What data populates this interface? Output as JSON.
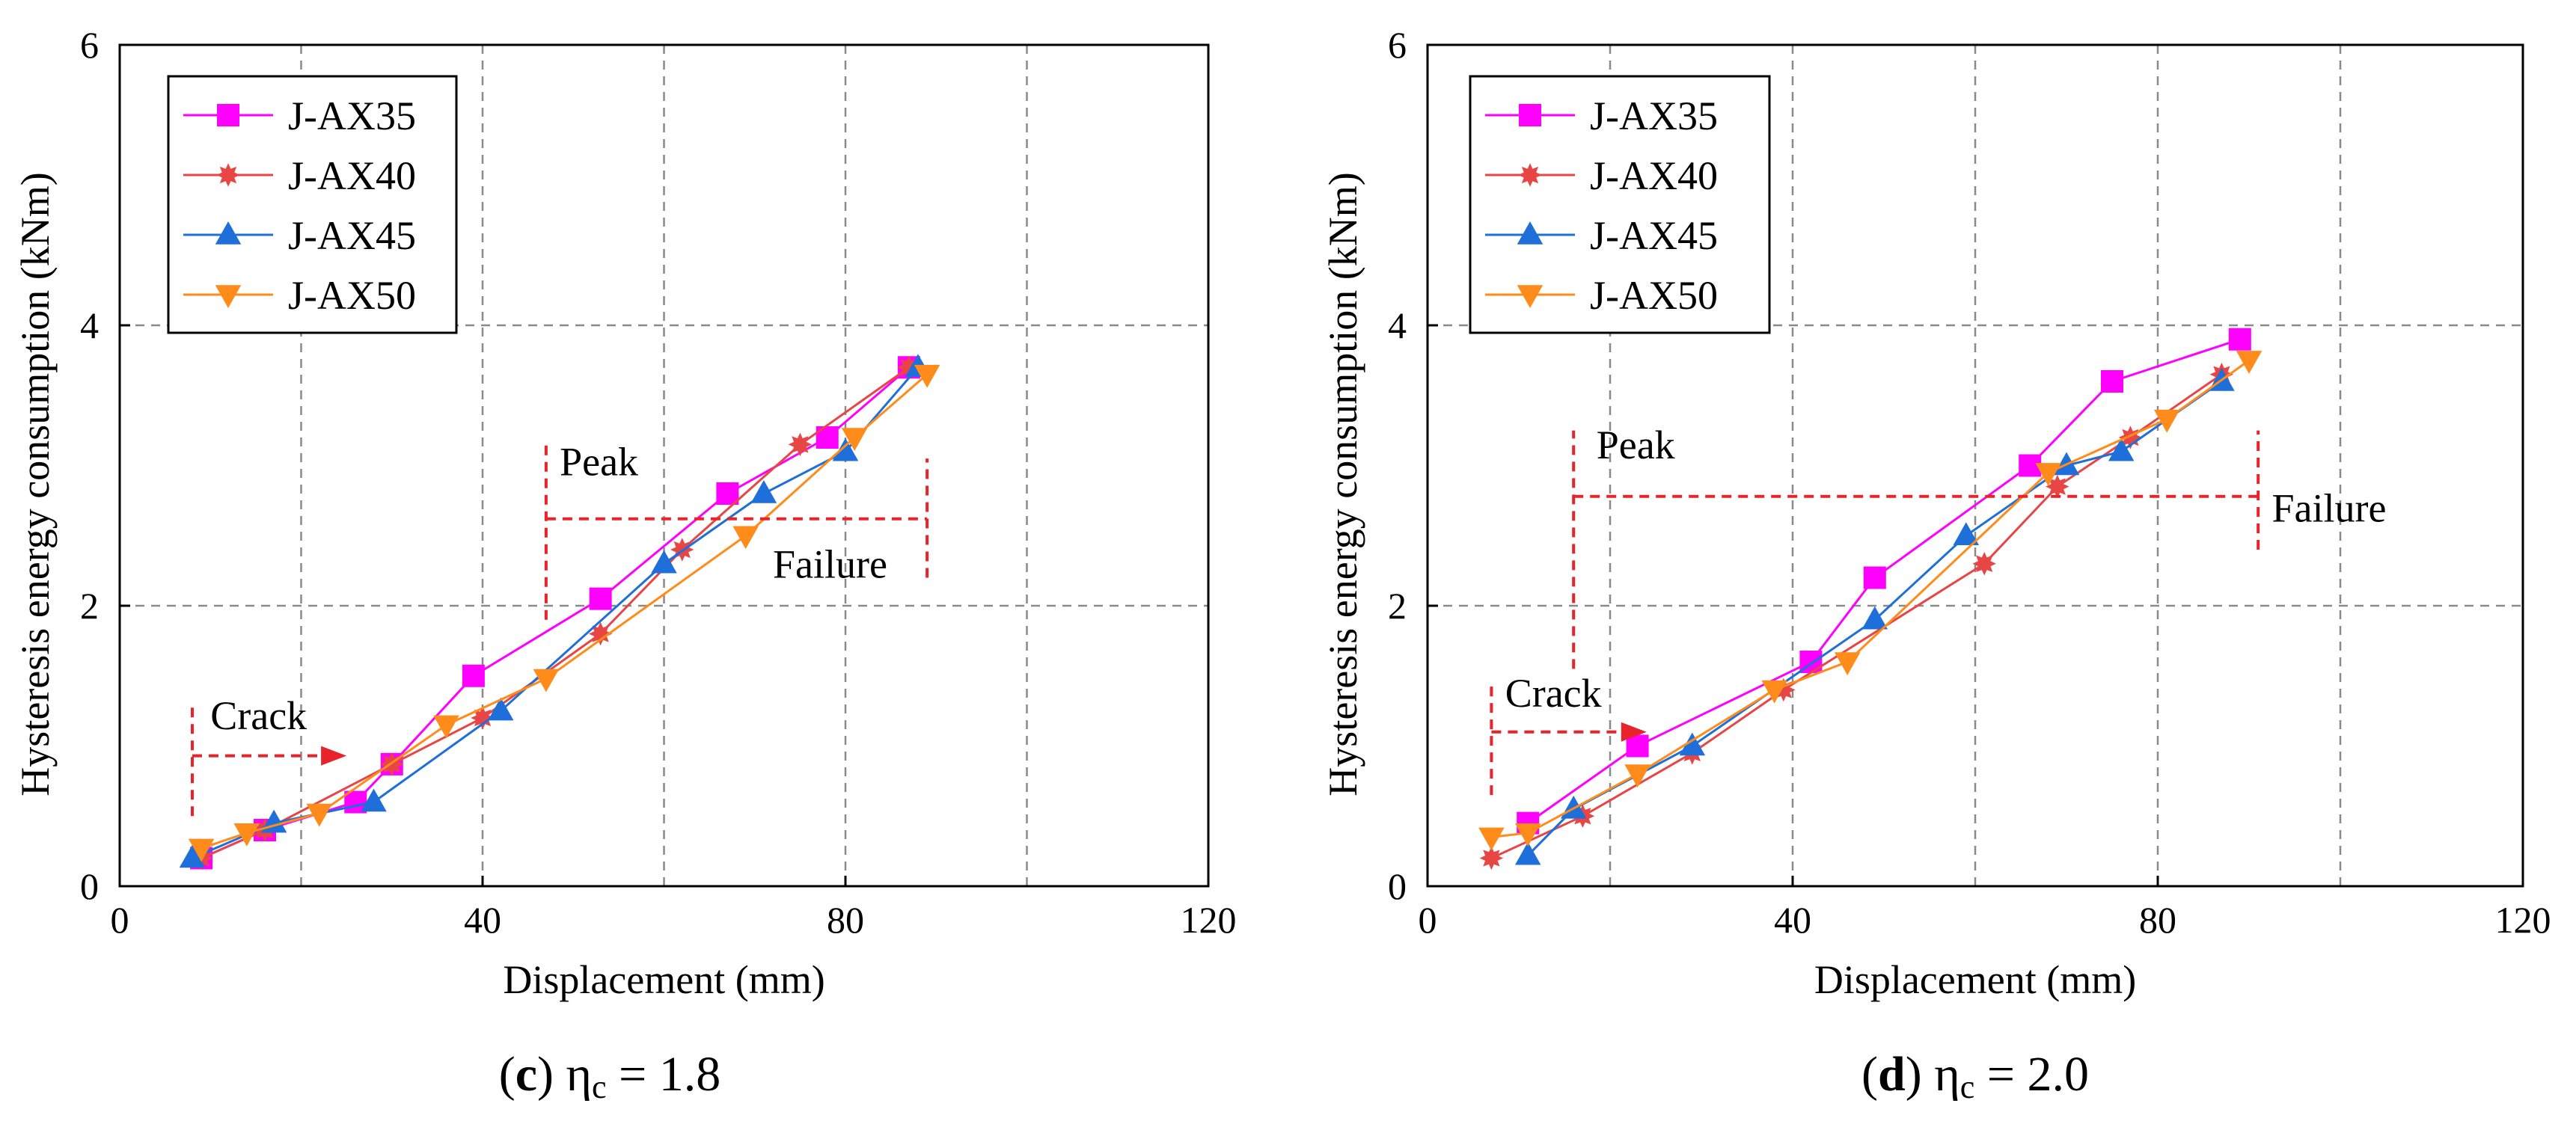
{
  "chart_data": [
    {
      "type": "line",
      "caption_letter": "(c)",
      "caption_rest": " η",
      "caption_sub": "c",
      "caption_value": " = 1.8",
      "xlabel": "Displacement (mm)",
      "ylabel": "Hysteresis energy consumption (kNm)",
      "xlim": [
        0,
        120
      ],
      "ylim": [
        0,
        6
      ],
      "xticks": [
        "0",
        "40",
        "80",
        "120"
      ],
      "yticks": [
        "0",
        "2",
        "4",
        "6"
      ],
      "grid": true,
      "legend_position": "top-left",
      "series": [
        {
          "name": "J-AX35",
          "color": "#ff00ff",
          "marker": "square",
          "x": [
            9,
            16,
            26,
            30,
            39,
            53,
            67,
            78,
            87
          ],
          "y": [
            0.2,
            0.4,
            0.6,
            0.87,
            1.5,
            2.05,
            2.8,
            3.2,
            3.7
          ]
        },
        {
          "name": "J-AX40",
          "color": "#e84545",
          "marker": "star",
          "x": [
            9,
            16,
            30,
            40,
            53,
            62,
            75,
            87
          ],
          "y": [
            0.2,
            0.4,
            0.87,
            1.2,
            1.8,
            2.4,
            3.15,
            3.7
          ]
        },
        {
          "name": "J-AX45",
          "color": "#1e6fd9",
          "marker": "triangle-up",
          "x": [
            8,
            17,
            28,
            42,
            60,
            71,
            80,
            88
          ],
          "y": [
            0.2,
            0.45,
            0.6,
            1.25,
            2.3,
            2.8,
            3.1,
            3.7
          ]
        },
        {
          "name": "J-AX50",
          "color": "#ff8c1a",
          "marker": "triangle-down",
          "x": [
            9,
            14,
            22,
            36,
            47,
            69,
            81,
            89
          ],
          "y": [
            0.27,
            0.38,
            0.52,
            1.15,
            1.48,
            2.5,
            3.2,
            3.65
          ]
        }
      ],
      "annotations": [
        {
          "text": "Crack",
          "x": 8,
          "y_range": [
            0.5,
            1.3
          ],
          "arrow_to_x": 25,
          "arrow_y": 0.93,
          "text_x": 10,
          "text_y": 1.12
        },
        {
          "text": "Peak",
          "x": 47,
          "y_range": [
            1.9,
            3.15
          ],
          "text_x": 48.5,
          "text_y": 2.93
        },
        {
          "text": "Failure",
          "x": 89,
          "y_range": [
            2.2,
            3.05
          ],
          "text_x": 72,
          "text_y": 2.2,
          "line_y": 2.62
        }
      ]
    },
    {
      "type": "line",
      "caption_letter": "(d)",
      "caption_rest": " η",
      "caption_sub": "c",
      "caption_value": " = 2.0",
      "xlabel": "Displacement (mm)",
      "ylabel": "Hysteresis energy consumption (kNm)",
      "xlim": [
        0,
        120
      ],
      "ylim": [
        0,
        6
      ],
      "xticks": [
        "0",
        "40",
        "80",
        "120"
      ],
      "yticks": [
        "0",
        "2",
        "4",
        "6"
      ],
      "grid": true,
      "legend_position": "top-left",
      "series": [
        {
          "name": "J-AX35",
          "color": "#ff00ff",
          "marker": "square",
          "x": [
            11,
            23,
            42,
            49,
            66,
            75,
            89
          ],
          "y": [
            0.45,
            1.0,
            1.6,
            2.2,
            3.0,
            3.6,
            3.9
          ]
        },
        {
          "name": "J-AX40",
          "color": "#e84545",
          "marker": "star",
          "x": [
            7,
            17,
            29,
            39,
            61,
            69,
            77,
            87
          ],
          "y": [
            0.2,
            0.5,
            0.95,
            1.4,
            2.3,
            2.85,
            3.2,
            3.65
          ]
        },
        {
          "name": "J-AX45",
          "color": "#1e6fd9",
          "marker": "triangle-up",
          "x": [
            11,
            16,
            29,
            49,
            59,
            70,
            76,
            87
          ],
          "y": [
            0.22,
            0.55,
            1.0,
            1.9,
            2.5,
            3.0,
            3.1,
            3.6
          ]
        },
        {
          "name": "J-AX50",
          "color": "#ff8c1a",
          "marker": "triangle-down",
          "x": [
            7,
            11,
            23,
            38,
            46,
            68,
            81,
            90
          ],
          "y": [
            0.35,
            0.38,
            0.8,
            1.4,
            1.6,
            2.95,
            3.33,
            3.75
          ]
        }
      ],
      "annotations": [
        {
          "text": "Crack",
          "x": 7,
          "y_range": [
            0.65,
            1.45
          ],
          "arrow_to_x": 24,
          "arrow_y": 1.1,
          "text_x": 8.5,
          "text_y": 1.28
        },
        {
          "text": "Peak",
          "x": 16,
          "y_range": [
            1.55,
            3.25
          ],
          "text_x": 18.5,
          "text_y": 3.05
        },
        {
          "text": "Failure",
          "x": 91,
          "y_range": [
            2.4,
            3.25
          ],
          "text_x": 92.5,
          "text_y": 2.6,
          "line_y": 2.78
        }
      ]
    }
  ]
}
